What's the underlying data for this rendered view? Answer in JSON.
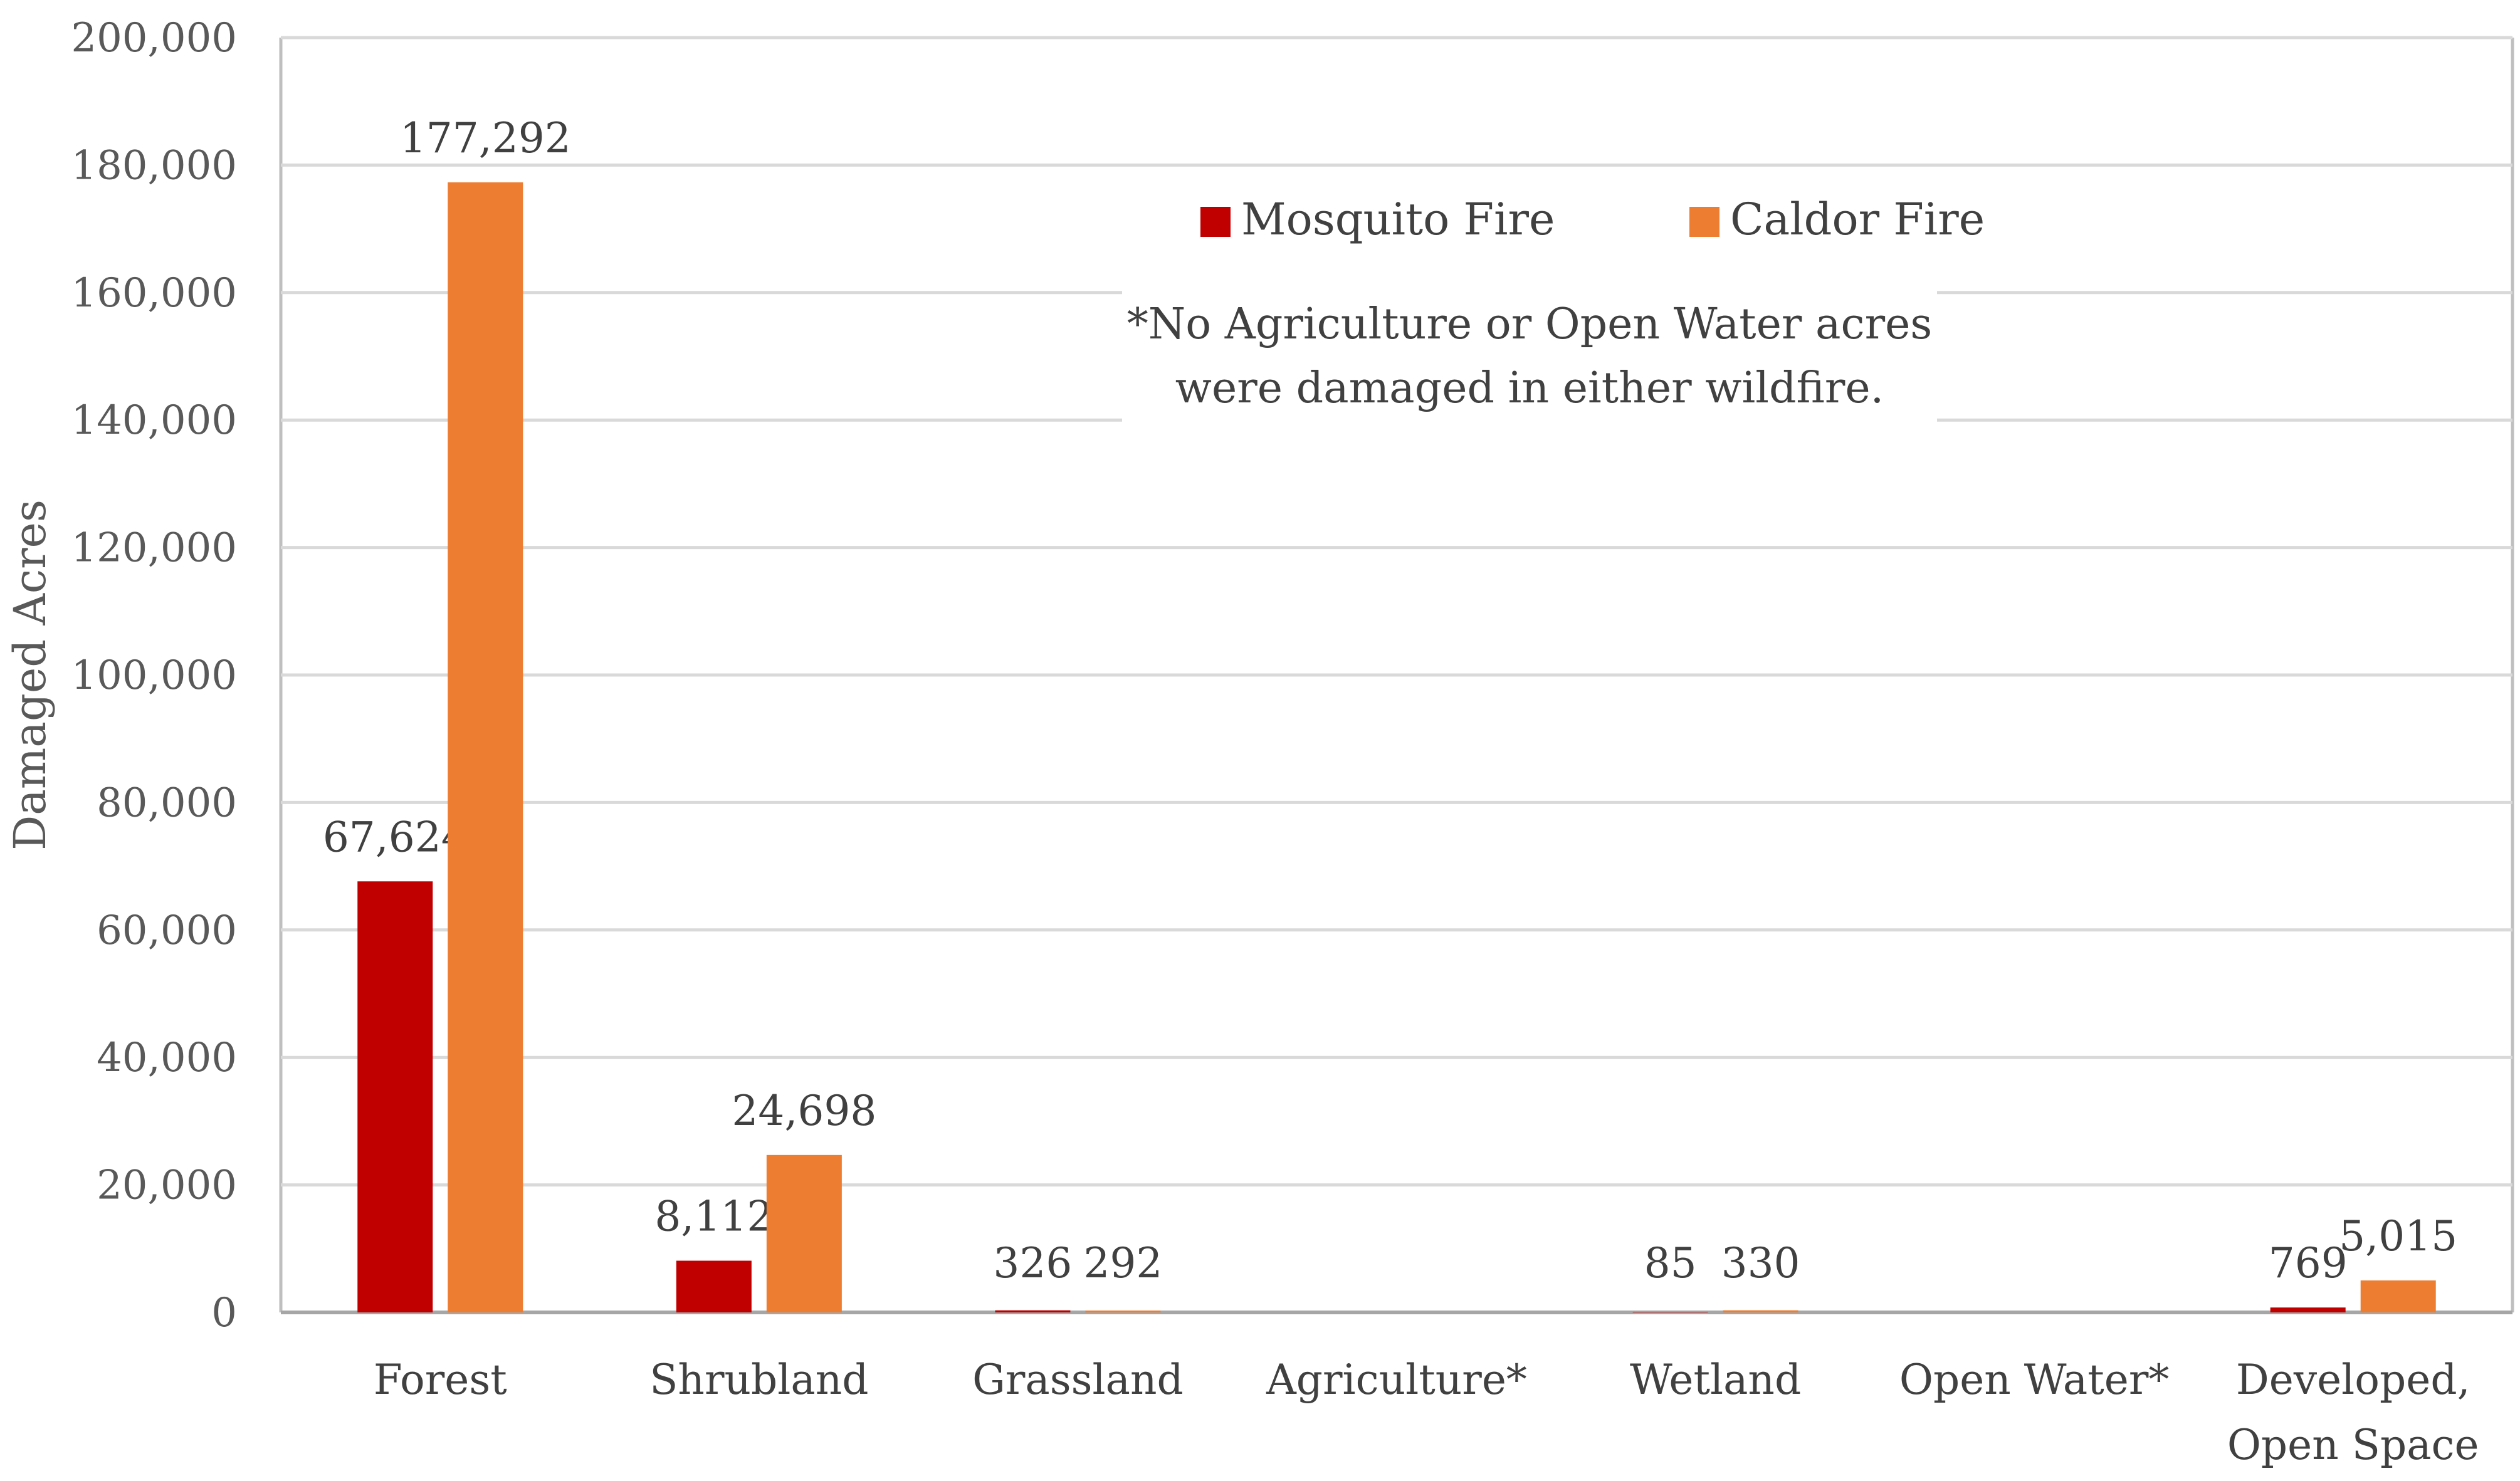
{
  "chart_data": {
    "type": "bar",
    "title": "",
    "xlabel": "",
    "ylabel": "Damaged Acres",
    "ylim": [
      0,
      200000
    ],
    "yticks": [
      0,
      20000,
      40000,
      60000,
      80000,
      100000,
      120000,
      140000,
      160000,
      180000,
      200000
    ],
    "ytick_labels": [
      "0",
      "20,000",
      "40,000",
      "60,000",
      "80,000",
      "100,000",
      "120,000",
      "140,000",
      "160,000",
      "180,000",
      "200,000"
    ],
    "grid": true,
    "legend_position": "top-center",
    "categories": [
      [
        "Forest"
      ],
      [
        "Shrubland"
      ],
      [
        "Grassland"
      ],
      [
        "Agriculture*"
      ],
      [
        "Wetland"
      ],
      [
        "Open Water*"
      ],
      [
        "Developed,",
        "Open Space"
      ]
    ],
    "series": [
      {
        "name": "Mosquito Fire",
        "color": "#c00000",
        "values": [
          67624,
          8112,
          326,
          0,
          85,
          0,
          769
        ],
        "labels": [
          "67,624",
          "8,112",
          "326",
          "",
          "85",
          "",
          "769"
        ]
      },
      {
        "name": "Caldor Fire",
        "color": "#ed7d31",
        "values": [
          177292,
          24698,
          292,
          0,
          330,
          0,
          5015
        ],
        "labels": [
          "177,292",
          "24,698",
          "292",
          "",
          "330",
          "",
          "5,015"
        ]
      }
    ],
    "annotation": [
      "*No Agriculture or Open Water acres",
      "were damaged in either wildfire."
    ]
  }
}
